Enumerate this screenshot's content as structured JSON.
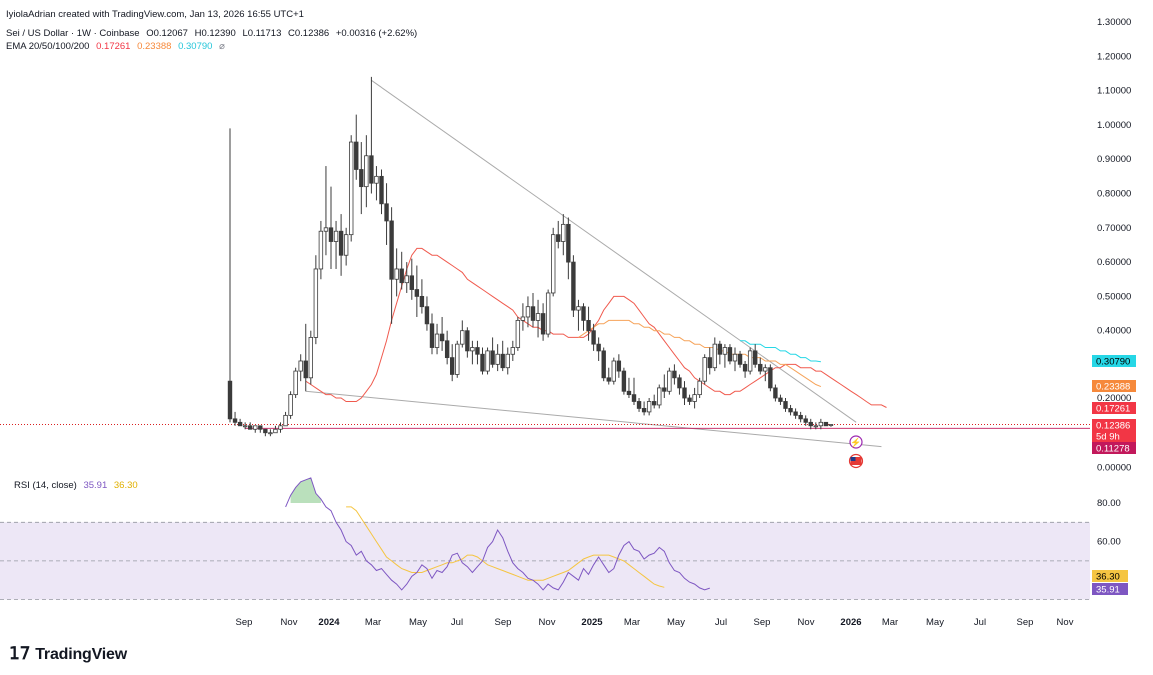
{
  "header": {
    "credit": "IyiolaAdrian created with TradingView.com, Jan 13, 2026 16:55 UTC+1",
    "symbol": "Sei / US Dollar · 1W · Coinbase",
    "ohlc": {
      "o": "O0.12067",
      "h": "H0.12390",
      "l": "L0.11713",
      "c": "C0.12386",
      "chg": "+0.00316 (+2.62%)"
    },
    "ema_label": "EMA 20/50/100/200",
    "ema_values": [
      "0.17261",
      "0.23388",
      "0.30790"
    ],
    "ema_extra": "⌀",
    "rsi_label": "RSI (14, close)",
    "rsi_values": [
      "35.91",
      "36.30"
    ]
  },
  "colors": {
    "up": "#ffffff",
    "down": "#3b3b3b",
    "ema20": "#f05a4e",
    "ema50": "#f6a35a",
    "ema200": "#26d7e6",
    "rsi": "#7e57c2",
    "rsi_ma": "#f5c542",
    "rsi_band": "#ede7f6",
    "trendline": "#aaaaaa",
    "price_line": "#d50000"
  },
  "time_axis": [
    "Sep",
    "Nov",
    "2024",
    "Mar",
    "May",
    "Jul",
    "Sep",
    "Nov",
    "2025",
    "Mar",
    "May",
    "Jul",
    "Sep",
    "Nov",
    "2026",
    "Mar",
    "May",
    "Jul",
    "Sep",
    "Nov"
  ],
  "bold_ticks": [
    "2024",
    "2025",
    "2026"
  ],
  "logo": "TradingView",
  "chart_data": [
    {
      "type": "candlestick",
      "title": "Sei / US Dollar · 1W · Coinbase",
      "ylim": [
        0,
        1.3
      ],
      "yticks": [
        "1.30000",
        "1.20000",
        "1.10000",
        "1.00000",
        "0.90000",
        "0.80000",
        "0.70000",
        "0.60000",
        "0.50000",
        "0.40000",
        "0.20000",
        "0.00000"
      ],
      "ytick_values": [
        1.3,
        1.2,
        1.1,
        1.0,
        0.9,
        0.8,
        0.7,
        0.6,
        0.5,
        0.4,
        0.2,
        0.0
      ],
      "price_badges": [
        {
          "label": "0.30790",
          "value": 0.3079,
          "color": "#26d7e6",
          "text": "#000000"
        },
        {
          "label": "0.23388",
          "value": 0.23388,
          "color": "#f6893b",
          "text": "#ffffff"
        },
        {
          "label": "0.17261",
          "value": 0.17261,
          "color": "#f23645",
          "text": "#ffffff"
        },
        {
          "label": "0.12386",
          "value": 0.12386,
          "color": "#f23645",
          "text": "#ffffff"
        },
        {
          "label": "5d 9h",
          "value": 0.1,
          "color": "#f23645",
          "text": "#ffffff"
        },
        {
          "label": "0.11278",
          "value": 0.06,
          "color": "#c2185b",
          "text": "#ffffff"
        }
      ],
      "candles": [
        [
          0.25,
          0.99,
          0.13,
          0.14
        ],
        [
          0.14,
          0.16,
          0.12,
          0.13
        ],
        [
          0.13,
          0.14,
          0.12,
          0.12
        ],
        [
          0.12,
          0.13,
          0.11,
          0.12
        ],
        [
          0.12,
          0.13,
          0.11,
          0.11
        ],
        [
          0.11,
          0.12,
          0.1,
          0.12
        ],
        [
          0.12,
          0.12,
          0.1,
          0.11
        ],
        [
          0.11,
          0.11,
          0.09,
          0.1
        ],
        [
          0.1,
          0.11,
          0.09,
          0.1
        ],
        [
          0.1,
          0.12,
          0.1,
          0.11
        ],
        [
          0.11,
          0.13,
          0.1,
          0.12
        ],
        [
          0.12,
          0.16,
          0.12,
          0.15
        ],
        [
          0.15,
          0.22,
          0.14,
          0.21
        ],
        [
          0.21,
          0.29,
          0.2,
          0.28
        ],
        [
          0.28,
          0.33,
          0.25,
          0.31
        ],
        [
          0.31,
          0.42,
          0.22,
          0.26
        ],
        [
          0.26,
          0.4,
          0.24,
          0.38
        ],
        [
          0.38,
          0.62,
          0.36,
          0.58
        ],
        [
          0.58,
          0.72,
          0.55,
          0.69
        ],
        [
          0.69,
          0.88,
          0.62,
          0.7
        ],
        [
          0.7,
          0.82,
          0.58,
          0.66
        ],
        [
          0.66,
          0.72,
          0.58,
          0.69
        ],
        [
          0.69,
          0.74,
          0.56,
          0.62
        ],
        [
          0.62,
          0.7,
          0.59,
          0.68
        ],
        [
          0.68,
          0.97,
          0.66,
          0.95
        ],
        [
          0.95,
          1.03,
          0.84,
          0.87
        ],
        [
          0.87,
          0.95,
          0.74,
          0.82
        ],
        [
          0.82,
          0.97,
          0.76,
          0.91
        ],
        [
          0.91,
          1.14,
          0.8,
          0.83
        ],
        [
          0.83,
          0.88,
          0.78,
          0.85
        ],
        [
          0.85,
          0.87,
          0.74,
          0.77
        ],
        [
          0.77,
          0.83,
          0.65,
          0.72
        ],
        [
          0.72,
          0.76,
          0.42,
          0.55
        ],
        [
          0.55,
          0.64,
          0.5,
          0.58
        ],
        [
          0.58,
          0.63,
          0.52,
          0.54
        ],
        [
          0.54,
          0.6,
          0.51,
          0.56
        ],
        [
          0.56,
          0.61,
          0.49,
          0.52
        ],
        [
          0.52,
          0.59,
          0.44,
          0.5
        ],
        [
          0.5,
          0.55,
          0.45,
          0.47
        ],
        [
          0.47,
          0.5,
          0.4,
          0.42
        ],
        [
          0.42,
          0.45,
          0.33,
          0.35
        ],
        [
          0.35,
          0.42,
          0.33,
          0.39
        ],
        [
          0.39,
          0.44,
          0.34,
          0.37
        ],
        [
          0.37,
          0.4,
          0.3,
          0.32
        ],
        [
          0.32,
          0.36,
          0.25,
          0.27
        ],
        [
          0.27,
          0.37,
          0.26,
          0.36
        ],
        [
          0.36,
          0.43,
          0.35,
          0.4
        ],
        [
          0.4,
          0.41,
          0.32,
          0.34
        ],
        [
          0.34,
          0.37,
          0.3,
          0.35
        ],
        [
          0.35,
          0.37,
          0.3,
          0.33
        ],
        [
          0.33,
          0.35,
          0.27,
          0.28
        ],
        [
          0.28,
          0.35,
          0.27,
          0.34
        ],
        [
          0.34,
          0.38,
          0.29,
          0.3
        ],
        [
          0.3,
          0.36,
          0.28,
          0.33
        ],
        [
          0.33,
          0.37,
          0.28,
          0.29
        ],
        [
          0.29,
          0.35,
          0.27,
          0.33
        ],
        [
          0.33,
          0.37,
          0.31,
          0.35
        ],
        [
          0.35,
          0.44,
          0.34,
          0.43
        ],
        [
          0.43,
          0.48,
          0.4,
          0.44
        ],
        [
          0.44,
          0.5,
          0.41,
          0.47
        ],
        [
          0.47,
          0.51,
          0.41,
          0.43
        ],
        [
          0.43,
          0.49,
          0.38,
          0.45
        ],
        [
          0.45,
          0.48,
          0.37,
          0.39
        ],
        [
          0.39,
          0.52,
          0.38,
          0.51
        ],
        [
          0.51,
          0.7,
          0.5,
          0.68
        ],
        [
          0.68,
          0.72,
          0.64,
          0.66
        ],
        [
          0.66,
          0.74,
          0.62,
          0.71
        ],
        [
          0.71,
          0.73,
          0.55,
          0.6
        ],
        [
          0.6,
          0.62,
          0.44,
          0.46
        ],
        [
          0.46,
          0.49,
          0.4,
          0.47
        ],
        [
          0.47,
          0.48,
          0.4,
          0.43
        ],
        [
          0.43,
          0.47,
          0.37,
          0.4
        ],
        [
          0.4,
          0.42,
          0.34,
          0.36
        ],
        [
          0.36,
          0.38,
          0.31,
          0.34
        ],
        [
          0.34,
          0.35,
          0.25,
          0.26
        ],
        [
          0.26,
          0.29,
          0.24,
          0.25
        ],
        [
          0.25,
          0.32,
          0.24,
          0.31
        ],
        [
          0.31,
          0.33,
          0.26,
          0.28
        ],
        [
          0.28,
          0.29,
          0.21,
          0.22
        ],
        [
          0.22,
          0.26,
          0.2,
          0.21
        ],
        [
          0.21,
          0.26,
          0.18,
          0.19
        ],
        [
          0.19,
          0.2,
          0.16,
          0.17
        ],
        [
          0.17,
          0.19,
          0.15,
          0.16
        ],
        [
          0.16,
          0.2,
          0.15,
          0.19
        ],
        [
          0.19,
          0.21,
          0.17,
          0.18
        ],
        [
          0.18,
          0.24,
          0.17,
          0.23
        ],
        [
          0.23,
          0.27,
          0.2,
          0.22
        ],
        [
          0.22,
          0.29,
          0.21,
          0.28
        ],
        [
          0.28,
          0.3,
          0.24,
          0.26
        ],
        [
          0.26,
          0.27,
          0.21,
          0.23
        ],
        [
          0.23,
          0.25,
          0.18,
          0.2
        ],
        [
          0.2,
          0.21,
          0.18,
          0.19
        ],
        [
          0.19,
          0.23,
          0.17,
          0.21
        ],
        [
          0.21,
          0.26,
          0.2,
          0.25
        ],
        [
          0.25,
          0.33,
          0.24,
          0.32
        ],
        [
          0.32,
          0.35,
          0.27,
          0.29
        ],
        [
          0.29,
          0.38,
          0.28,
          0.36
        ],
        [
          0.36,
          0.37,
          0.3,
          0.33
        ],
        [
          0.33,
          0.36,
          0.29,
          0.35
        ],
        [
          0.35,
          0.36,
          0.3,
          0.31
        ],
        [
          0.31,
          0.35,
          0.28,
          0.33
        ],
        [
          0.33,
          0.34,
          0.29,
          0.3
        ],
        [
          0.3,
          0.31,
          0.26,
          0.28
        ],
        [
          0.28,
          0.35,
          0.27,
          0.34
        ],
        [
          0.34,
          0.36,
          0.29,
          0.3
        ],
        [
          0.3,
          0.32,
          0.27,
          0.28
        ],
        [
          0.28,
          0.3,
          0.25,
          0.29
        ],
        [
          0.29,
          0.3,
          0.22,
          0.23
        ],
        [
          0.23,
          0.24,
          0.19,
          0.2
        ],
        [
          0.2,
          0.21,
          0.18,
          0.19
        ],
        [
          0.19,
          0.2,
          0.16,
          0.17
        ],
        [
          0.17,
          0.18,
          0.15,
          0.16
        ],
        [
          0.16,
          0.17,
          0.14,
          0.15
        ],
        [
          0.15,
          0.16,
          0.13,
          0.14
        ],
        [
          0.14,
          0.15,
          0.12,
          0.13
        ],
        [
          0.13,
          0.14,
          0.11,
          0.12
        ],
        [
          0.12,
          0.13,
          0.11,
          0.12
        ],
        [
          0.12,
          0.14,
          0.11,
          0.13
        ],
        [
          0.13,
          0.13,
          0.12,
          0.12
        ],
        [
          0.12067,
          0.1239,
          0.11713,
          0.12386
        ]
      ],
      "ema20": [
        0.25,
        0.24,
        0.23,
        0.22,
        0.21,
        0.21,
        0.2,
        0.2,
        0.19,
        0.19,
        0.19,
        0.2,
        0.22,
        0.24,
        0.27,
        0.32,
        0.37,
        0.43,
        0.48,
        0.53,
        0.58,
        0.62,
        0.64,
        0.64,
        0.63,
        0.62,
        0.62,
        0.61,
        0.6,
        0.59,
        0.58,
        0.57,
        0.55,
        0.54,
        0.53,
        0.52,
        0.51,
        0.5,
        0.49,
        0.48,
        0.47,
        0.46,
        0.44,
        0.43,
        0.42,
        0.41,
        0.41,
        0.4,
        0.4,
        0.39,
        0.39,
        0.39,
        0.38,
        0.38,
        0.38,
        0.38,
        0.39,
        0.41,
        0.43,
        0.46,
        0.48,
        0.5,
        0.5,
        0.5,
        0.49,
        0.48,
        0.46,
        0.44,
        0.42,
        0.41,
        0.39,
        0.37,
        0.35,
        0.33,
        0.31,
        0.29,
        0.28,
        0.26,
        0.25,
        0.24,
        0.23,
        0.22,
        0.22,
        0.21,
        0.21,
        0.22,
        0.22,
        0.23,
        0.24,
        0.25,
        0.26,
        0.27,
        0.28,
        0.29,
        0.29,
        0.3,
        0.3,
        0.3,
        0.29,
        0.29,
        0.29,
        0.28,
        0.28,
        0.27,
        0.26,
        0.25,
        0.24,
        0.23,
        0.22,
        0.21,
        0.2,
        0.19,
        0.18,
        0.18,
        0.18,
        0.17261
      ],
      "ema20_start": 15,
      "ema50": [
        0.38,
        0.39,
        0.4,
        0.41,
        0.42,
        0.42,
        0.43,
        0.43,
        0.43,
        0.43,
        0.43,
        0.42,
        0.42,
        0.41,
        0.41,
        0.4,
        0.4,
        0.39,
        0.39,
        0.38,
        0.38,
        0.37,
        0.37,
        0.36,
        0.36,
        0.35,
        0.35,
        0.35,
        0.34,
        0.34,
        0.33,
        0.33,
        0.33,
        0.33,
        0.32,
        0.32,
        0.32,
        0.31,
        0.31,
        0.31,
        0.3,
        0.3,
        0.29,
        0.28,
        0.27,
        0.26,
        0.25,
        0.24,
        0.23388
      ],
      "ema50_start": 69,
      "ema200": [
        0.37,
        0.37,
        0.36,
        0.36,
        0.36,
        0.35,
        0.35,
        0.35,
        0.34,
        0.34,
        0.33,
        0.33,
        0.32,
        0.32,
        0.31,
        0.31,
        0.3079
      ],
      "ema200_start": 101,
      "trend_upper": [
        [
          28,
          1.13
        ],
        [
          124,
          0.13
        ]
      ],
      "trend_lower": [
        [
          15,
          0.22
        ],
        [
          129,
          0.06
        ]
      ],
      "lows_line": [
        [
          3,
          0.12
        ],
        [
          124,
          0.11278
        ]
      ],
      "current_price": 0.12386
    },
    {
      "type": "line",
      "title": "RSI (14, close)",
      "ylim": [
        20,
        100
      ],
      "yticks": [
        "80.00",
        "60.00"
      ],
      "ytick_values": [
        80,
        60
      ],
      "bands": [
        70,
        50,
        30
      ],
      "rsi_start": 11,
      "rsi": [
        78,
        84,
        88,
        91,
        92,
        93,
        85,
        82,
        78,
        76,
        70,
        66,
        60,
        58,
        53,
        55,
        50,
        48,
        45,
        46,
        43,
        40,
        38,
        35,
        38,
        42,
        44,
        48,
        46,
        41,
        45,
        44,
        47,
        53,
        54,
        49,
        47,
        44,
        47,
        50,
        57,
        60,
        66,
        62,
        55,
        49,
        46,
        44,
        41,
        40,
        38,
        35,
        38,
        36,
        35,
        39,
        44,
        42,
        40,
        46,
        43,
        48,
        52,
        48,
        44,
        46,
        53,
        58,
        60,
        56,
        55,
        51,
        53,
        54,
        57,
        55,
        49,
        45,
        44,
        41,
        39,
        38,
        36,
        35,
        35.91
      ],
      "rsi_ma_start": 23,
      "rsi_ma": [
        78,
        78,
        76,
        72,
        68,
        64,
        60,
        56,
        52,
        50,
        48,
        46,
        45,
        44,
        44,
        44,
        45,
        46,
        47,
        48,
        49,
        49,
        50,
        51,
        53,
        53,
        52,
        50,
        48,
        47,
        46,
        45,
        44,
        43,
        42,
        41,
        40,
        40,
        40,
        40,
        41,
        42,
        43,
        44,
        45,
        47,
        49,
        51,
        52,
        53,
        53,
        53,
        53,
        52,
        51,
        50,
        48,
        46,
        44,
        42,
        40,
        38,
        37,
        36.3
      ]
    }
  ]
}
